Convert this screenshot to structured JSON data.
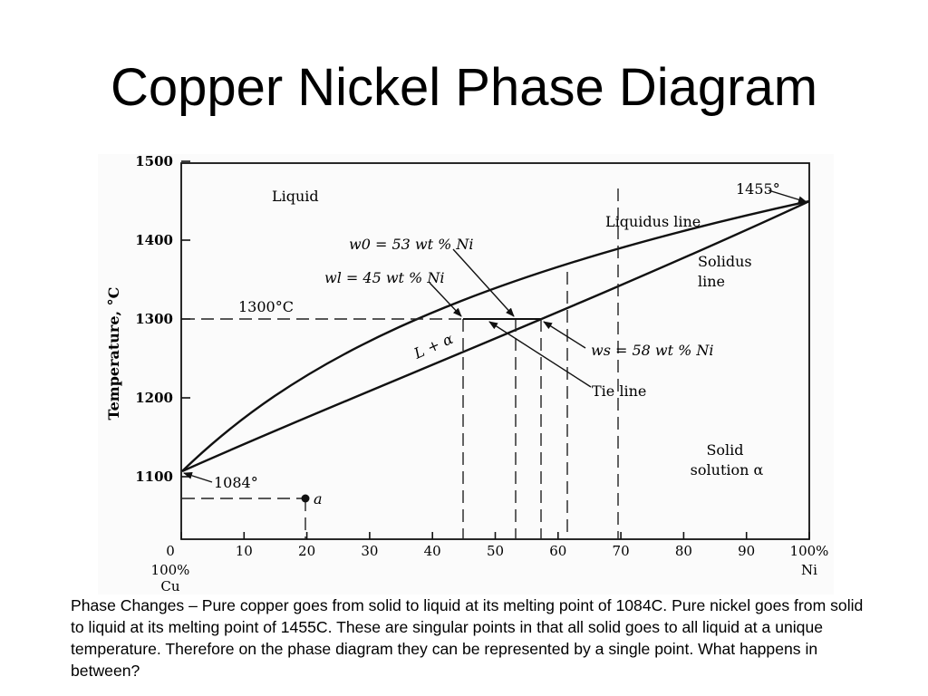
{
  "slide": {
    "title": "Copper Nickel Phase Diagram",
    "caption": "Phase Changes – Pure copper goes from solid to liquid at its melting point of  1084C. Pure nickel goes from solid to liquid at its melting point of 1455C. These are singular points in that all solid goes to all liquid at a unique temperature. Therefore on the phase diagram they can be represented by a single point. What happens in between?"
  },
  "diagram": {
    "y_axis_label": "Temperature, °C",
    "y_ticks": [
      {
        "value": 1500,
        "label": "1500"
      },
      {
        "value": 1400,
        "label": "1400"
      },
      {
        "value": 1300,
        "label": "1300"
      },
      {
        "value": 1200,
        "label": "1200"
      },
      {
        "value": 1100,
        "label": "1100"
      }
    ],
    "x_ticks": [
      {
        "value": 0,
        "label": "0"
      },
      {
        "value": 10,
        "label": "10"
      },
      {
        "value": 20,
        "label": "20"
      },
      {
        "value": 30,
        "label": "30"
      },
      {
        "value": 40,
        "label": "40"
      },
      {
        "value": 50,
        "label": "50"
      },
      {
        "value": 60,
        "label": "60"
      },
      {
        "value": 70,
        "label": "70"
      },
      {
        "value": 80,
        "label": "80"
      },
      {
        "value": 90,
        "label": "90"
      },
      {
        "value": 100,
        "label": "100%"
      }
    ],
    "x_left_end": {
      "line1": "100%",
      "line2": "Cu"
    },
    "x_right_end": "Ni",
    "regions": {
      "liquid": "Liquid",
      "two_phase": "L + α",
      "solid_line1": "Solid",
      "solid_line2": "solution α"
    },
    "lines": {
      "liquidus": "Liquidus line",
      "solidus_line1": "Solidus",
      "solidus_line2": "line",
      "tie_line": "Tie line"
    },
    "annotations": {
      "ni_melting": "1455°",
      "cu_melting": "1084°",
      "temp_1300": "1300°C",
      "w0": "w0 = 53 wt % Ni",
      "wl": "wl = 45 wt % Ni",
      "ws": "ws = 58 wt % Ni",
      "point_a": "a"
    },
    "values": {
      "cu_melting_c": 1084,
      "ni_melting_c": 1455,
      "tie_line_temp_c": 1300,
      "w0_wt_pct_ni": 53,
      "wl_wt_pct_ni": 45,
      "ws_wt_pct_ni": 58,
      "point_a": {
        "wt_pct_ni": 20,
        "temp_c": 1050
      }
    }
  }
}
